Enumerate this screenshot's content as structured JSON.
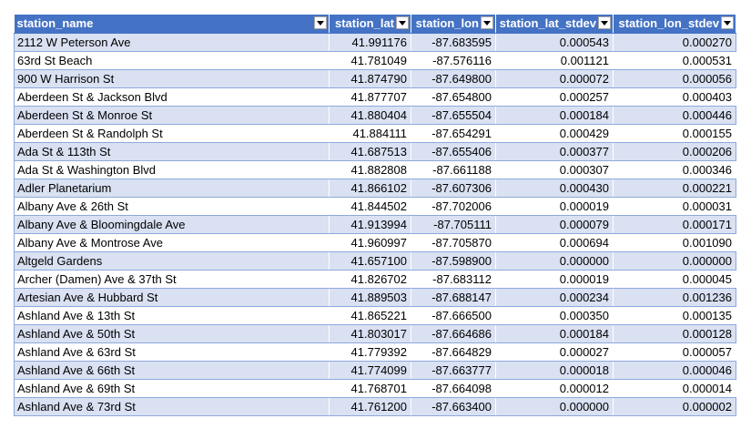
{
  "colors": {
    "header_bg": "#4472c4",
    "header_text": "#ffffff",
    "band_row": "#d9e1f2",
    "plain_row": "#ffffff",
    "row_border": "#8ea9db"
  },
  "columns": [
    {
      "label": "station_name",
      "filter_icon": "filter-dropdown-icon"
    },
    {
      "label": "station_lat",
      "filter_icon": "filter-dropdown-icon"
    },
    {
      "label": "station_lon",
      "filter_icon": "filter-dropdown-icon"
    },
    {
      "label": "station_lat_stdev",
      "filter_icon": "filter-dropdown-icon"
    },
    {
      "label": "station_lon_stdev",
      "filter_icon": "filter-dropdown-icon"
    }
  ],
  "rows": [
    [
      "2112 W Peterson Ave",
      "41.991176",
      "-87.683595",
      "0.000543",
      "0.000270"
    ],
    [
      "63rd St Beach",
      "41.781049",
      "-87.576116",
      "0.001121",
      "0.000531"
    ],
    [
      "900 W Harrison St",
      "41.874790",
      "-87.649800",
      "0.000072",
      "0.000056"
    ],
    [
      "Aberdeen St & Jackson Blvd",
      "41.877707",
      "-87.654800",
      "0.000257",
      "0.000403"
    ],
    [
      "Aberdeen St & Monroe St",
      "41.880404",
      "-87.655504",
      "0.000184",
      "0.000446"
    ],
    [
      "Aberdeen St & Randolph St",
      "41.884111",
      "-87.654291",
      "0.000429",
      "0.000155"
    ],
    [
      "Ada St & 113th St",
      "41.687513",
      "-87.655406",
      "0.000377",
      "0.000206"
    ],
    [
      "Ada St & Washington Blvd",
      "41.882808",
      "-87.661188",
      "0.000307",
      "0.000346"
    ],
    [
      "Adler Planetarium",
      "41.866102",
      "-87.607306",
      "0.000430",
      "0.000221"
    ],
    [
      "Albany Ave & 26th St",
      "41.844502",
      "-87.702006",
      "0.000019",
      "0.000031"
    ],
    [
      "Albany Ave & Bloomingdale Ave",
      "41.913994",
      "-87.705111",
      "0.000079",
      "0.000171"
    ],
    [
      "Albany Ave & Montrose Ave",
      "41.960997",
      "-87.705870",
      "0.000694",
      "0.001090"
    ],
    [
      "Altgeld Gardens",
      "41.657100",
      "-87.598900",
      "0.000000",
      "0.000000"
    ],
    [
      "Archer (Damen) Ave & 37th St",
      "41.826702",
      "-87.683112",
      "0.000019",
      "0.000045"
    ],
    [
      "Artesian Ave & Hubbard St",
      "41.889503",
      "-87.688147",
      "0.000234",
      "0.001236"
    ],
    [
      "Ashland Ave & 13th St",
      "41.865221",
      "-87.666500",
      "0.000350",
      "0.000135"
    ],
    [
      "Ashland Ave & 50th St",
      "41.803017",
      "-87.664686",
      "0.000184",
      "0.000128"
    ],
    [
      "Ashland Ave & 63rd St",
      "41.779392",
      "-87.664829",
      "0.000027",
      "0.000057"
    ],
    [
      "Ashland Ave & 66th St",
      "41.774099",
      "-87.663777",
      "0.000018",
      "0.000046"
    ],
    [
      "Ashland Ave & 69th St",
      "41.768701",
      "-87.664098",
      "0.000012",
      "0.000014"
    ],
    [
      "Ashland Ave & 73rd St",
      "41.761200",
      "-87.663400",
      "0.000000",
      "0.000002"
    ]
  ]
}
